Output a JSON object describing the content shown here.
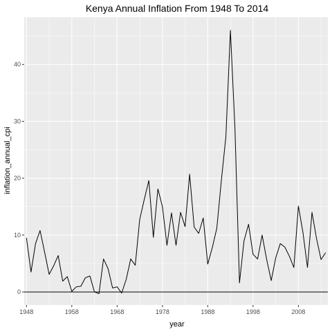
{
  "chart_data": {
    "type": "line",
    "title": "Kenya Annual Inflation From 1948 To 2014",
    "xlabel": "year",
    "ylabel": "inflation_annual_cpi",
    "xlim": [
      1947.5,
      2014.5
    ],
    "ylim": [
      -2.3,
      48.3
    ],
    "xticks": [
      1948,
      1958,
      1968,
      1978,
      1988,
      1998,
      2008
    ],
    "yticks": [
      0,
      10,
      20,
      30,
      40
    ],
    "grid": true,
    "legend": "none",
    "hline": 0,
    "colors": {
      "panel": "#ebebeb",
      "grid": "#ffffff",
      "line": "#000000"
    },
    "series": [
      {
        "x": [
          1948,
          1949,
          1950,
          1951,
          1952,
          1953,
          1954,
          1955,
          1956,
          1957,
          1958,
          1959,
          1960,
          1961,
          1962,
          1963,
          1964,
          1965,
          1966,
          1967,
          1968,
          1969,
          1970,
          1971,
          1972,
          1973,
          1974,
          1975,
          1976,
          1977,
          1978,
          1979,
          1980,
          1981,
          1982,
          1983,
          1984,
          1985,
          1986,
          1987,
          1988,
          1989,
          1990,
          1991,
          1992,
          1993,
          1994,
          1995,
          1996,
          1997,
          1998,
          1999,
          2000,
          2001,
          2002,
          2003,
          2004,
          2005,
          2006,
          2007,
          2008,
          2009,
          2010,
          2011,
          2012,
          2013,
          2014
        ],
        "values": [
          9.5,
          3.5,
          8.5,
          10.8,
          7.0,
          3.1,
          4.6,
          6.4,
          1.9,
          2.7,
          0.1,
          0.9,
          1.0,
          2.5,
          2.8,
          0.0,
          -0.3,
          5.8,
          4.1,
          0.7,
          0.9,
          -0.2,
          2.2,
          5.8,
          4.7,
          12.8,
          16.3,
          19.6,
          9.6,
          18.1,
          15.0,
          8.2,
          13.9,
          8.2,
          14.0,
          11.5,
          20.7,
          11.4,
          10.3,
          13.0,
          4.9,
          7.8,
          11.2,
          19.6,
          27.3,
          46.0,
          28.8,
          1.6,
          9.0,
          11.9,
          6.6,
          5.8,
          10.0,
          5.7,
          2.0,
          6.0,
          8.5,
          7.9,
          6.3,
          4.3,
          15.1,
          10.5,
          4.3,
          14.0,
          9.4,
          5.7,
          6.9
        ]
      }
    ]
  }
}
